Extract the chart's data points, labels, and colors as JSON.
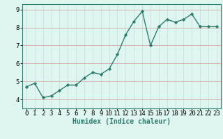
{
  "x": [
    0,
    1,
    2,
    3,
    4,
    5,
    6,
    7,
    8,
    9,
    10,
    11,
    12,
    13,
    14,
    15,
    16,
    17,
    18,
    19,
    20,
    21,
    22,
    23
  ],
  "y": [
    4.7,
    4.9,
    4.1,
    4.2,
    4.5,
    4.8,
    4.8,
    5.2,
    5.5,
    5.4,
    5.7,
    6.5,
    7.6,
    8.35,
    8.9,
    7.0,
    8.05,
    8.45,
    8.3,
    8.45,
    8.75,
    8.05,
    8.05,
    8.05
  ],
  "line_color": "#2e7d6e",
  "marker": "D",
  "marker_size": 2.2,
  "line_width": 1.0,
  "xlabel": "Humidex (Indice chaleur)",
  "xlabel_fontsize": 7,
  "xlim": [
    -0.5,
    23.5
  ],
  "ylim": [
    3.5,
    9.3
  ],
  "yticks": [
    4,
    5,
    6,
    7,
    8,
    9
  ],
  "xticks": [
    0,
    1,
    2,
    3,
    4,
    5,
    6,
    7,
    8,
    9,
    10,
    11,
    12,
    13,
    14,
    15,
    16,
    17,
    18,
    19,
    20,
    21,
    22,
    23
  ],
  "bg_color": "#dff5f0",
  "grid_color": "#c8e8e0",
  "grid_color_v": "#d4a0a0",
  "tick_fontsize": 6.5,
  "fig_bg_color": "#dff5f0",
  "spine_color": "#2e7d6e"
}
